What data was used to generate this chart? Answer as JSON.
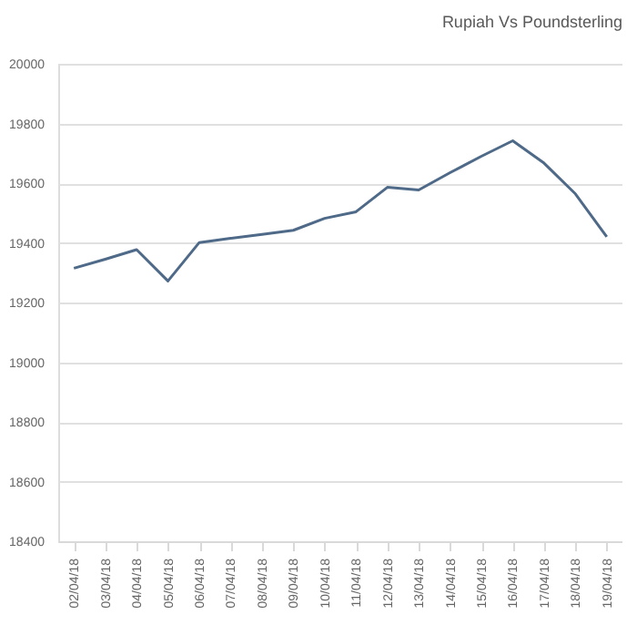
{
  "chart_data": {
    "type": "line",
    "title": "Rupiah Vs Poundsterling",
    "categories": [
      "02/04/18",
      "03/04/18",
      "04/04/18",
      "05/04/18",
      "06/04/18",
      "07/04/18",
      "08/04/18",
      "09/04/18",
      "10/04/18",
      "11/04/18",
      "12/04/18",
      "13/04/18",
      "14/04/18",
      "15/04/18",
      "16/04/18",
      "17/04/18",
      "18/04/18",
      "19/04/18"
    ],
    "series": [
      {
        "color": "#4e6a88",
        "values": [
          19315,
          19345,
          19377,
          19272,
          19401,
          19415,
          19428,
          19442,
          19482,
          19504,
          19586,
          19577,
          19635,
          19690,
          19742,
          19667,
          19564,
          19420
        ]
      }
    ],
    "ylim": [
      18400,
      20000
    ],
    "yticks": [
      18400,
      18600,
      18800,
      19000,
      19200,
      19400,
      19600,
      19800,
      20000
    ],
    "grid": "y",
    "marker": "none",
    "line_style": "solid"
  }
}
